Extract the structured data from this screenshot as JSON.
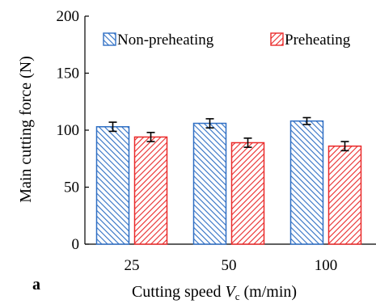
{
  "panel_label": "a",
  "colors": {
    "non_preheating_stroke": "#2f6fc4",
    "preheating_stroke": "#ea2a2a",
    "axis": "#000000"
  },
  "chart_data": {
    "type": "bar",
    "title": "",
    "xlabel": {
      "prefix": "Cutting speed ",
      "var": "V",
      "sub": "c",
      "suffix": " (m/min)"
    },
    "ylabel": "Main cutting force (N)",
    "categories": [
      "25",
      "50",
      "100"
    ],
    "ylim": [
      0,
      200
    ],
    "yticks": [
      0,
      50,
      100,
      150,
      200
    ],
    "grid": false,
    "legend_position": "top",
    "series": [
      {
        "name": "Non-preheating",
        "pattern": "hatch-backslash",
        "values": [
          103,
          106,
          108
        ],
        "errors": [
          4,
          4,
          3
        ]
      },
      {
        "name": "Preheating",
        "pattern": "hatch-slash",
        "values": [
          94,
          89,
          86
        ],
        "errors": [
          4,
          4,
          4
        ]
      }
    ]
  }
}
